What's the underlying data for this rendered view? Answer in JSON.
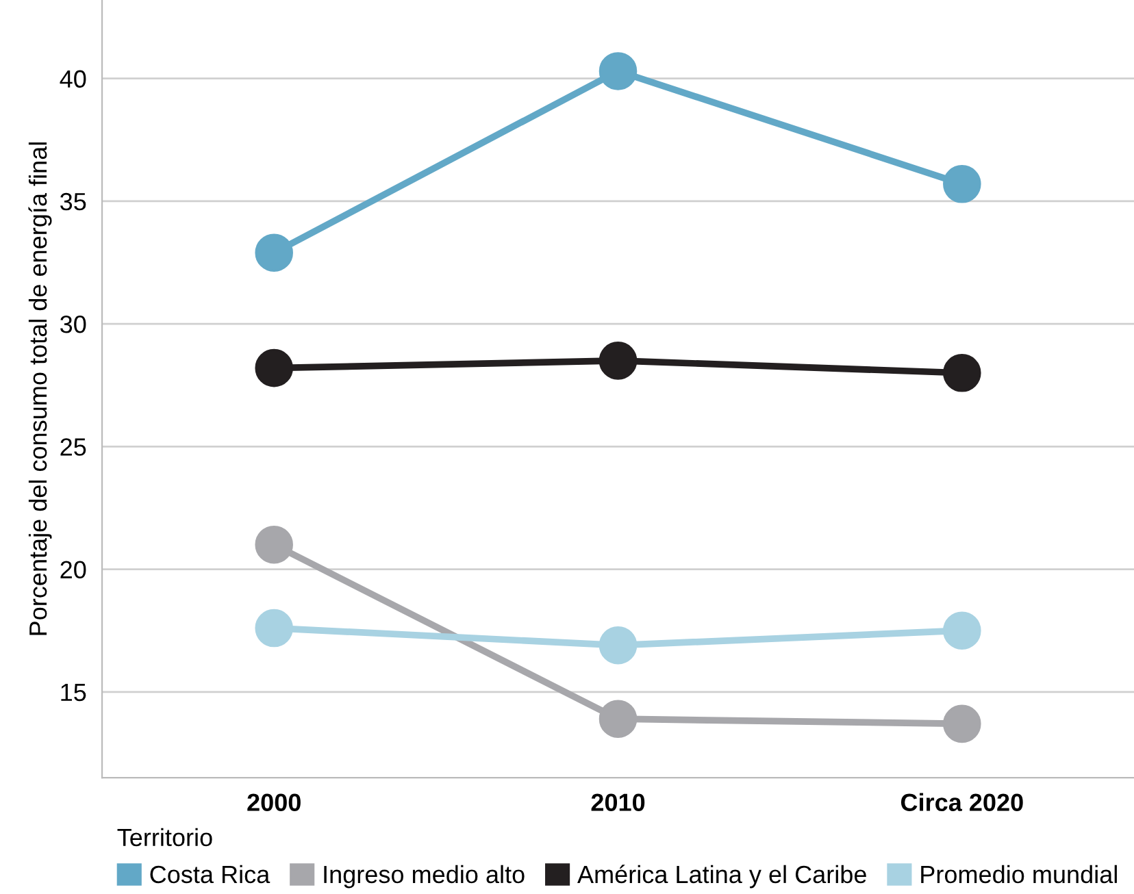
{
  "chart_data": {
    "type": "line",
    "ylabel": "Porcentaje del consumo total de energía final",
    "categories": [
      "2000",
      "2010",
      "Circa 2020"
    ],
    "series": [
      {
        "name": "Costa Rica",
        "color": "#62a8c7",
        "values": [
          32.9,
          40.3,
          35.7
        ]
      },
      {
        "name": "Ingreso medio alto",
        "color": "#a7a7ab",
        "values": [
          21.0,
          13.9,
          13.7
        ]
      },
      {
        "name": "América Latina y el Caribe",
        "color": "#231f20",
        "values": [
          28.2,
          28.5,
          28.0
        ]
      },
      {
        "name": "Promedio mundial",
        "color": "#a8d2e2",
        "values": [
          17.6,
          16.9,
          17.5
        ]
      }
    ],
    "ylim": [
      11.5,
      43.2
    ],
    "yticks": [
      15,
      20,
      25,
      30,
      35,
      40
    ],
    "grid": "y",
    "legend": "bottom",
    "legend_title": "Territorio",
    "marker": "circle",
    "line_style": "solid"
  }
}
